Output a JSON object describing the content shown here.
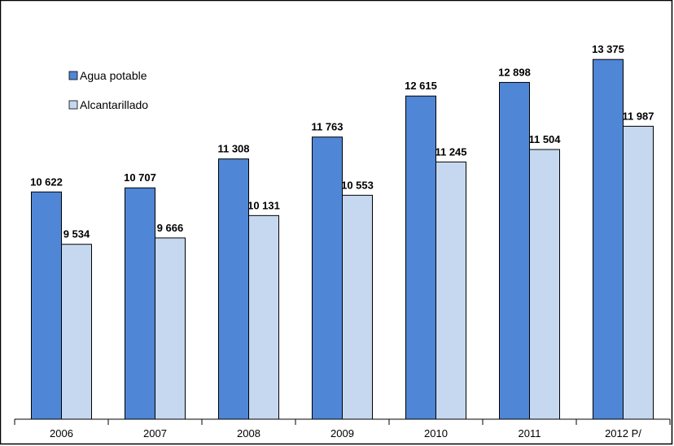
{
  "chart_data": {
    "type": "bar",
    "categories": [
      "2006",
      "2007",
      "2008",
      "2009",
      "2010",
      "2011",
      "2012 P/"
    ],
    "series": [
      {
        "name": "Agua potable",
        "values": [
          10622,
          10707,
          11308,
          11763,
          12615,
          12898,
          13375
        ],
        "labels": [
          "10 622",
          "10 707",
          "11 308",
          "11 763",
          "12 615",
          "12 898",
          "13 375"
        ],
        "color": "#4f86d6"
      },
      {
        "name": "Alcantarillado",
        "values": [
          9534,
          9666,
          10131,
          10553,
          11245,
          11504,
          11987
        ],
        "labels": [
          "9 534",
          "9 666",
          "10 131",
          "10 553",
          "11 245",
          "11 504",
          "11 987"
        ],
        "color": "#c6d8f0"
      }
    ],
    "ylim": [
      5900,
      13800
    ],
    "grid": false,
    "legend_position": "top-left"
  }
}
